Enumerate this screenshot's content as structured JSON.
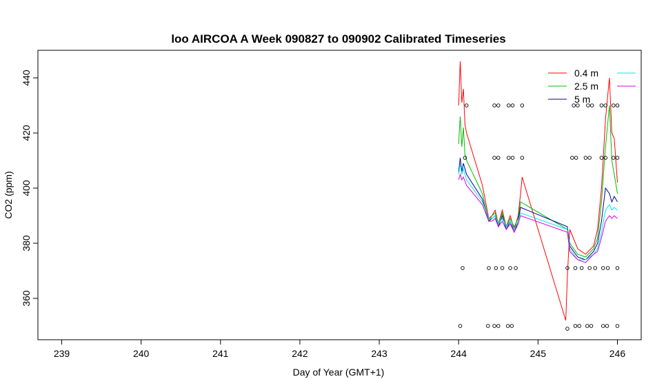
{
  "chart_data": {
    "type": "line",
    "title": "loo AIRCOA A  Week 090827 to 090902  Calibrated Timeseries",
    "xlabel": "Day of Year (GMT+1)",
    "ylabel": "CO2 (ppm)",
    "xlim": [
      238.7,
      246.3
    ],
    "ylim": [
      345,
      450
    ],
    "xticks": [
      239,
      240,
      241,
      242,
      243,
      244,
      245,
      246
    ],
    "yticks": [
      360,
      380,
      400,
      420,
      440
    ],
    "legend": {
      "placement": "top-right",
      "labels": [
        "0.4 m",
        "2.5 m",
        "5 m",
        "",
        ""
      ]
    },
    "series": [
      {
        "name": "0.4 m",
        "color": "#ff0000",
        "x": [
          244.0,
          244.02,
          244.04,
          244.06,
          244.08,
          244.1,
          244.3,
          244.38,
          244.42,
          244.46,
          244.5,
          244.55,
          244.6,
          244.65,
          244.7,
          244.75,
          244.78,
          244.8,
          245.35,
          245.37,
          245.4,
          245.5,
          245.6,
          245.7,
          245.75,
          245.8,
          245.85,
          245.9,
          245.93,
          245.96,
          246.0
        ],
        "y": [
          430,
          446,
          431,
          436,
          423,
          420,
          401,
          389,
          390,
          392,
          387,
          392,
          386,
          390,
          385,
          390,
          398,
          404,
          352,
          368,
          385,
          378,
          376,
          379,
          385,
          400,
          425,
          440,
          420,
          418,
          402
        ]
      },
      {
        "name": "2.5 m",
        "color": "#00bb00",
        "x": [
          244.0,
          244.02,
          244.04,
          244.06,
          244.08,
          244.1,
          244.3,
          244.38,
          244.42,
          244.46,
          244.5,
          244.55,
          244.6,
          244.65,
          244.7,
          244.75,
          244.78,
          245.37,
          245.4,
          245.5,
          245.6,
          245.7,
          245.75,
          245.8,
          245.85,
          245.9,
          245.93,
          245.96,
          246.0
        ],
        "y": [
          416,
          426,
          415,
          422,
          412,
          410,
          398,
          388,
          390,
          391,
          387,
          391,
          386,
          389,
          386,
          389,
          395,
          385,
          380,
          376,
          375,
          378,
          382,
          395,
          415,
          430,
          410,
          405,
          398
        ]
      },
      {
        "name": "5 m",
        "color": "#000099",
        "x": [
          244.0,
          244.02,
          244.04,
          244.06,
          244.1,
          244.3,
          244.38,
          244.42,
          244.46,
          244.5,
          244.55,
          244.6,
          244.65,
          244.7,
          244.75,
          244.78,
          245.37,
          245.4,
          245.5,
          245.6,
          245.7,
          245.75,
          245.8,
          245.85,
          245.9,
          245.93,
          245.96,
          246.0
        ],
        "y": [
          406,
          411,
          406,
          409,
          405,
          396,
          388,
          389,
          390,
          386,
          390,
          385,
          388,
          384,
          388,
          393,
          386,
          379,
          375,
          374,
          377,
          380,
          388,
          400,
          398,
          395,
          397,
          395
        ]
      },
      {
        "name": "",
        "color": "#00e5ee",
        "x": [
          244.0,
          244.02,
          244.04,
          244.06,
          244.1,
          244.3,
          244.38,
          244.42,
          244.46,
          244.5,
          244.55,
          244.6,
          244.65,
          244.7,
          244.75,
          244.78,
          245.37,
          245.4,
          245.5,
          245.6,
          245.7,
          245.75,
          245.8,
          245.85,
          245.9,
          245.93,
          245.96,
          246.0
        ],
        "y": [
          405,
          409,
          405,
          407,
          403,
          395,
          389,
          389,
          390,
          387,
          389,
          386,
          388,
          385,
          388,
          391,
          385,
          378,
          374,
          374,
          376,
          378,
          384,
          392,
          394,
          392,
          393,
          392
        ]
      },
      {
        "name": "",
        "color": "#dd00dd",
        "x": [
          244.0,
          244.02,
          244.04,
          244.06,
          244.1,
          244.3,
          244.38,
          244.42,
          244.46,
          244.5,
          244.55,
          244.6,
          244.65,
          244.7,
          244.75,
          244.78,
          245.37,
          245.4,
          245.5,
          245.6,
          245.7,
          245.75,
          245.8,
          245.85,
          245.9,
          245.93,
          245.96,
          246.0
        ],
        "y": [
          403,
          405,
          403,
          404,
          401,
          394,
          388,
          388,
          389,
          386,
          388,
          385,
          387,
          384,
          387,
          390,
          384,
          377,
          374,
          373,
          376,
          377,
          382,
          388,
          390,
          389,
          390,
          389
        ]
      }
    ],
    "markers": {
      "shape": "open-circle",
      "points": [
        [
          244.1,
          430
        ],
        [
          244.45,
          430
        ],
        [
          244.5,
          430
        ],
        [
          244.63,
          430
        ],
        [
          244.68,
          430
        ],
        [
          244.8,
          430
        ],
        [
          245.45,
          430
        ],
        [
          245.5,
          430
        ],
        [
          245.63,
          430
        ],
        [
          245.68,
          430
        ],
        [
          245.8,
          430
        ],
        [
          245.85,
          430
        ],
        [
          245.95,
          430
        ],
        [
          246.0,
          430
        ],
        [
          244.08,
          411
        ],
        [
          244.45,
          411
        ],
        [
          244.5,
          411
        ],
        [
          244.63,
          411
        ],
        [
          244.68,
          411
        ],
        [
          244.8,
          411
        ],
        [
          245.43,
          411
        ],
        [
          245.48,
          411
        ],
        [
          245.6,
          411
        ],
        [
          245.65,
          411
        ],
        [
          245.8,
          411
        ],
        [
          245.85,
          411
        ],
        [
          245.95,
          411
        ],
        [
          246.0,
          411
        ],
        [
          244.05,
          371
        ],
        [
          244.38,
          371
        ],
        [
          244.47,
          371
        ],
        [
          244.55,
          371
        ],
        [
          244.65,
          371
        ],
        [
          244.72,
          371
        ],
        [
          245.37,
          371
        ],
        [
          245.47,
          371
        ],
        [
          245.55,
          371
        ],
        [
          245.65,
          371
        ],
        [
          245.72,
          371
        ],
        [
          245.82,
          371
        ],
        [
          245.88,
          371
        ],
        [
          246.0,
          371
        ],
        [
          244.02,
          350
        ],
        [
          244.37,
          350
        ],
        [
          244.45,
          350
        ],
        [
          244.5,
          350
        ],
        [
          244.62,
          350
        ],
        [
          244.67,
          350
        ],
        [
          245.37,
          349
        ],
        [
          245.47,
          350
        ],
        [
          245.52,
          350
        ],
        [
          245.62,
          350
        ],
        [
          245.67,
          350
        ],
        [
          245.82,
          350
        ],
        [
          245.87,
          350
        ],
        [
          246.0,
          350
        ]
      ]
    }
  }
}
